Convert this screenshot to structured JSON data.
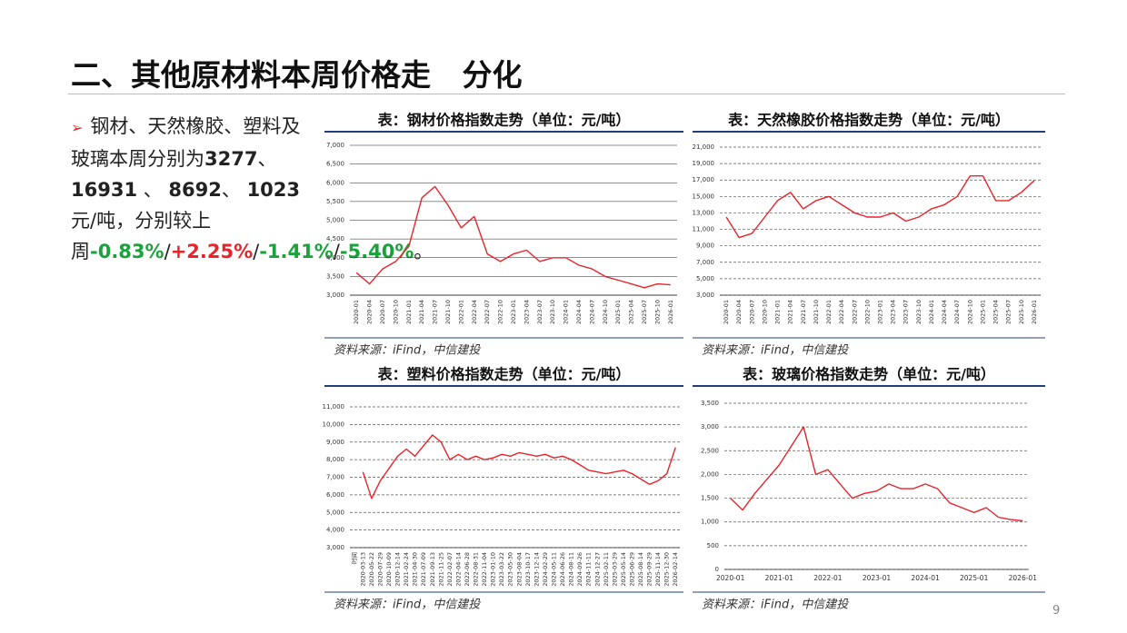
{
  "title": "二、其他原材料本周价格走   分化",
  "bullet": [
    {
      "text": "钢材、天然橡胶、塑料及玻璃本周分别为"
    },
    {
      "text": "3277",
      "bold": true
    },
    {
      "text": "、"
    },
    {
      "text": "16931",
      "bold": true
    },
    {
      "text": " 、 "
    },
    {
      "text": "8692",
      "bold": true
    },
    {
      "text": "、 "
    },
    {
      "text": "1023",
      "bold": true
    },
    {
      "text": "元/吨，分别较上周"
    },
    {
      "text": "-0.83%",
      "bold": true,
      "color": "#1aa33a"
    },
    {
      "text": "/"
    },
    {
      "text": "+2.25%",
      "bold": true,
      "color": "#e8232a"
    },
    {
      "text": "/"
    },
    {
      "text": "-1.41%",
      "bold": true,
      "color": "#1aa33a"
    },
    {
      "text": "/"
    },
    {
      "text": "-5.40%",
      "bold": true,
      "color": "#1aa33a"
    },
    {
      "text": "。"
    }
  ],
  "page_number": "9",
  "chart_data": [
    {
      "type": "line",
      "title": "表：钢材价格指数走势（单位：元/吨）",
      "source": "资料来源：iFind，中信建投",
      "color": "#e8232a",
      "grid": true,
      "grid_style": "solid",
      "x_label_rotation": -90,
      "categories": [
        "2020-01",
        "2020-04",
        "2020-07",
        "2020-10",
        "2021-01",
        "2021-04",
        "2021-07",
        "2021-10",
        "2022-01",
        "2022-04",
        "2022-07",
        "2022-10",
        "2023-01",
        "2023-04",
        "2023-07",
        "2023-10",
        "2024-01",
        "2024-04",
        "2024-07",
        "2024-10",
        "2025-01",
        "2025-04",
        "2025-07",
        "2025-10",
        "2026-01"
      ],
      "values": [
        3600,
        3300,
        3700,
        3900,
        4300,
        5600,
        5900,
        5400,
        4800,
        5100,
        4100,
        3900,
        4100,
        4200,
        3900,
        4000,
        4000,
        3800,
        3700,
        3500,
        3400,
        3300,
        3200,
        3300,
        3277
      ],
      "ylim": [
        3000,
        7000
      ],
      "yticks": [
        {
          "value": 3000,
          "label": "3,000"
        },
        {
          "value": 3500,
          "label": "3,500"
        },
        {
          "value": 4000,
          "label": "4,000"
        },
        {
          "value": 4500,
          "label": "4,500"
        },
        {
          "value": 5000,
          "label": "5,000"
        },
        {
          "value": 5500,
          "label": "5,500"
        },
        {
          "value": 6000,
          "label": "6,000"
        },
        {
          "value": 6500,
          "label": "6,500"
        },
        {
          "value": 7000,
          "label": "7,000"
        }
      ]
    },
    {
      "type": "line",
      "title": "表：天然橡胶价格指数走势（单位：元/吨）",
      "source": "资料来源：iFind，中信建投",
      "color": "#e8232a",
      "grid": true,
      "grid_style": "dashed",
      "x_label_rotation": -90,
      "categories": [
        "2020-01",
        "2020-04",
        "2020-07",
        "2020-10",
        "2021-01",
        "2021-04",
        "2021-07",
        "2021-10",
        "2022-01",
        "2022-04",
        "2022-07",
        "2022-10",
        "2023-01",
        "2023-04",
        "2023-07",
        "2023-10",
        "2024-01",
        "2024-04",
        "2024-07",
        "2024-10",
        "2025-01",
        "2025-04",
        "2025-07",
        "2025-10",
        "2026-01"
      ],
      "values": [
        12500,
        10000,
        10500,
        12500,
        14500,
        15500,
        13500,
        14500,
        15000,
        14000,
        13000,
        12500,
        12500,
        13000,
        12000,
        12500,
        13500,
        14000,
        15000,
        17500,
        17500,
        14500,
        14500,
        15500,
        16931
      ],
      "ylim": [
        3000,
        21000
      ],
      "yticks": [
        {
          "value": 3000,
          "label": "3,000"
        },
        {
          "value": 5000,
          "label": "5,000"
        },
        {
          "value": 7000,
          "label": "7,000"
        },
        {
          "value": 9000,
          "label": "9,000"
        },
        {
          "value": 11000,
          "label": "11,000"
        },
        {
          "value": 13000,
          "label": "13,000"
        },
        {
          "value": 15000,
          "label": "15,000"
        },
        {
          "value": 17000,
          "label": "17,000"
        },
        {
          "value": 19000,
          "label": "19,000"
        },
        {
          "value": 21000,
          "label": "21,000"
        }
      ]
    },
    {
      "type": "line",
      "title": "表：塑料价格指数走势（单位：元/吨）",
      "source": "资料来源：iFind，中信建投",
      "color": "#e8232a",
      "grid": true,
      "grid_style": "dashed",
      "x_label_rotation": -90,
      "categories": [
        "时间",
        "2020-03-13",
        "2020-05-22",
        "2020-07-29",
        "2020-10-09",
        "2020-12-14",
        "2021-02-24",
        "2021-04-30",
        "2021-07-09",
        "2021-09-13",
        "2021-11-25",
        "2022-02-07",
        "2022-04-14",
        "2022-06-28",
        "2022-08-31",
        "2022-11-04",
        "2023-01-10",
        "2023-03-22",
        "2023-05-30",
        "2023-08-04",
        "2023-10-17",
        "2023-12-14",
        "2024-02-29",
        "2024-05-11",
        "2024-06-26",
        "2024-08-11",
        "2024-09-26",
        "2024-11-11",
        "2024-12-27",
        "2025-02-11",
        "2025-03-29",
        "2025-05-14",
        "2025-06-29",
        "2025-08-14",
        "2025-09-29",
        "2025-11-14",
        "2025-12-30",
        "2026-02-14"
      ],
      "values": [
        null,
        7300,
        5800,
        6800,
        7500,
        8200,
        8600,
        8200,
        8800,
        9400,
        9000,
        8000,
        8300,
        8000,
        8200,
        8000,
        8100,
        8300,
        8200,
        8400,
        8300,
        8200,
        8300,
        8100,
        8200,
        8000,
        7700,
        7400,
        7300,
        7200,
        7300,
        7400,
        7200,
        6900,
        6600,
        6800,
        7200,
        8692
      ],
      "ylim": [
        3000,
        11000
      ],
      "yticks": [
        {
          "value": 3000,
          "label": "3,000"
        },
        {
          "value": 4000,
          "label": "4,000"
        },
        {
          "value": 5000,
          "label": "5,000"
        },
        {
          "value": 6000,
          "label": "6,000"
        },
        {
          "value": 7000,
          "label": "7,000"
        },
        {
          "value": 8000,
          "label": "8,000"
        },
        {
          "value": 9000,
          "label": "9,000"
        },
        {
          "value": 10000,
          "label": "10,000"
        },
        {
          "value": 11000,
          "label": "11,000"
        }
      ]
    },
    {
      "type": "line",
      "title": "表：玻璃价格指数走势（单位：元/吨）",
      "source": "资料来源：iFind，中信建投",
      "color": "#e8232a",
      "grid": true,
      "grid_style": "dashed",
      "x_label_rotation": 0,
      "categories": [
        "2020-01",
        null,
        null,
        null,
        "2021-01",
        null,
        null,
        null,
        "2022-01",
        null,
        null,
        null,
        "2023-01",
        null,
        null,
        null,
        "2024-01",
        null,
        null,
        null,
        "2025-01",
        null,
        null,
        null,
        "2026-01"
      ],
      "values": [
        1500,
        1250,
        1600,
        1900,
        2200,
        2600,
        3000,
        2000,
        2100,
        1800,
        1500,
        1600,
        1650,
        1800,
        1700,
        1700,
        1800,
        1700,
        1400,
        1300,
        1200,
        1300,
        1100,
        1050,
        1023
      ],
      "ylim": [
        0,
        3500
      ],
      "yticks": [
        0,
        500,
        {
          "value": 1000,
          "label": "1,000"
        },
        {
          "value": 1500,
          "label": "1,500"
        },
        {
          "value": 2000,
          "label": "2,000"
        },
        {
          "value": 2500,
          "label": "2,500"
        },
        {
          "value": 3000,
          "label": "3,000"
        },
        {
          "value": 3500,
          "label": "3,500"
        }
      ]
    }
  ]
}
